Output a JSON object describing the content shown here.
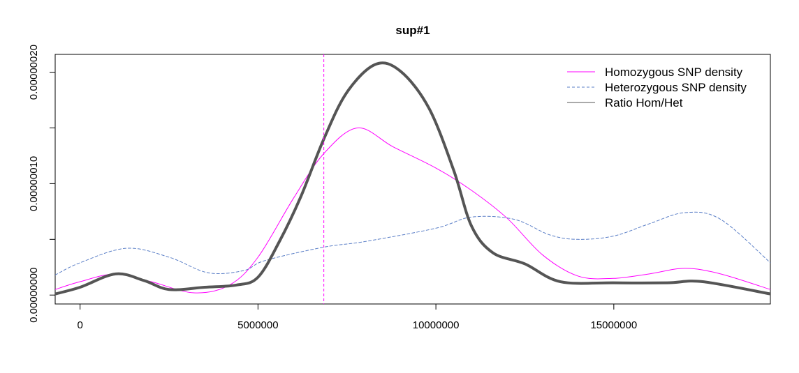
{
  "chart_data": {
    "type": "line",
    "title": "sup#1",
    "xlabel": "",
    "ylabel": "",
    "xlim": [
      -700000,
      19400000
    ],
    "ylim": [
      -8e-09,
      2.16e-07
    ],
    "x_ticks": [
      0,
      5000000,
      10000000,
      15000000
    ],
    "x_tick_labels": [
      "0",
      "5000000",
      "10000000",
      "15000000"
    ],
    "y_ticks": [
      0,
      5e-08,
      1e-07,
      1.5e-07,
      2e-07
    ],
    "y_tick_labels": [
      "0.00000000",
      "",
      "0.00000010",
      "",
      "0.00000020"
    ],
    "grid": false,
    "legend_position": "top-right",
    "vline": {
      "x": 6850000,
      "color": "#ff00ff"
    },
    "series": [
      {
        "name": "Homozygous SNP density",
        "color": "#ff00ff",
        "style": "solid",
        "points": [
          [
            -700000,
            5e-09
          ],
          [
            0,
            1.2e-08
          ],
          [
            1000000,
            1.9e-08
          ],
          [
            2000000,
            1.2e-08
          ],
          [
            3200000,
            2e-09
          ],
          [
            4200000,
            9e-09
          ],
          [
            5000000,
            3.4e-08
          ],
          [
            6000000,
            8.7e-08
          ],
          [
            6850000,
            1.27e-07
          ],
          [
            7800000,
            1.5e-07
          ],
          [
            8800000,
            1.33e-07
          ],
          [
            10000000,
            1.14e-07
          ],
          [
            11000000,
            9.4e-08
          ],
          [
            12000000,
            6.9e-08
          ],
          [
            13000000,
            3.6e-08
          ],
          [
            14000000,
            1.7e-08
          ],
          [
            15000000,
            1.5e-08
          ],
          [
            16000000,
            1.9e-08
          ],
          [
            17000000,
            2.4e-08
          ],
          [
            18000000,
            1.9e-08
          ],
          [
            19400000,
            5e-09
          ]
        ]
      },
      {
        "name": "Heterozygous SNP density",
        "color": "#5b7fc7",
        "style": "dashed",
        "points": [
          [
            -700000,
            1.8e-08
          ],
          [
            0,
            2.9e-08
          ],
          [
            1300000,
            4.2e-08
          ],
          [
            2500000,
            3.4e-08
          ],
          [
            3600000,
            2e-08
          ],
          [
            4600000,
            2.2e-08
          ],
          [
            5200000,
            3.1e-08
          ],
          [
            6850000,
            4.3e-08
          ],
          [
            8000000,
            4.8e-08
          ],
          [
            10000000,
            6e-08
          ],
          [
            11000000,
            7e-08
          ],
          [
            12200000,
            6.8e-08
          ],
          [
            13200000,
            5.4e-08
          ],
          [
            14000000,
            5e-08
          ],
          [
            15000000,
            5.3e-08
          ],
          [
            16000000,
            6.4e-08
          ],
          [
            17000000,
            7.4e-08
          ],
          [
            18000000,
            6.8e-08
          ],
          [
            19400000,
            2.9e-08
          ]
        ]
      },
      {
        "name": "Ratio Hom/Het",
        "color": "#555555",
        "style": "solid",
        "points": [
          [
            -700000,
            1e-09
          ],
          [
            0,
            7e-09
          ],
          [
            1000000,
            1.9e-08
          ],
          [
            1800000,
            1.3e-08
          ],
          [
            2500000,
            5e-09
          ],
          [
            3500000,
            7e-09
          ],
          [
            4400000,
            9e-09
          ],
          [
            5000000,
            1.6e-08
          ],
          [
            5600000,
            4.8e-08
          ],
          [
            6200000,
            8.8e-08
          ],
          [
            6850000,
            1.4e-07
          ],
          [
            7500000,
            1.82e-07
          ],
          [
            8300000,
            2.07e-07
          ],
          [
            9000000,
            2.01e-07
          ],
          [
            9800000,
            1.68e-07
          ],
          [
            10500000,
            1.12e-07
          ],
          [
            11000000,
            6.2e-08
          ],
          [
            11600000,
            3.8e-08
          ],
          [
            12500000,
            2.8e-08
          ],
          [
            13500000,
            1.2e-08
          ],
          [
            15000000,
            1.1e-08
          ],
          [
            16500000,
            1.1e-08
          ],
          [
            17500000,
            1.2e-08
          ],
          [
            19400000,
            1e-09
          ]
        ]
      }
    ]
  }
}
